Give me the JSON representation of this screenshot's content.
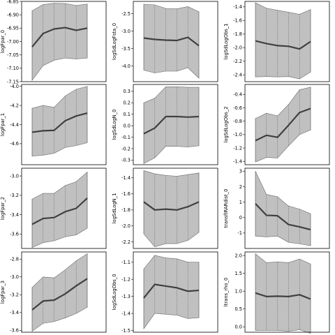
{
  "colors": {
    "band": "#c0c0c0",
    "mean": "#404040",
    "frame": "#000000"
  },
  "chart_data": [
    {
      "type": "area",
      "ylabel": "logFpar_0",
      "ylim": [
        -7.15,
        -6.85
      ],
      "yticks": [
        -7.15,
        -7.1,
        -7.05,
        -7.0,
        -6.95,
        -6.9,
        -6.85
      ],
      "ytick_labels": [
        "-7.15",
        "-7.10",
        "-7.05",
        "-7.00",
        "-6.95",
        "-6.90",
        "-6.85"
      ],
      "x": [
        0,
        1,
        2,
        3,
        4,
        5
      ],
      "mean": [
        -7.02,
        -6.97,
        -6.953,
        -6.948,
        -6.958,
        -6.95
      ],
      "upper": [
        -6.885,
        -6.862,
        -6.857,
        -6.858,
        -6.865,
        -6.86
      ],
      "lower": [
        -7.145,
        -7.09,
        -7.07,
        -7.062,
        -7.065,
        -7.062
      ]
    },
    {
      "type": "area",
      "ylabel": "logSdLogFsta_0",
      "ylim": [
        -4.45,
        -2.15
      ],
      "yticks": [
        -4.0,
        -3.5,
        -3.0,
        -2.5
      ],
      "ytick_labels": [
        "-4.0",
        "-3.5",
        "-3.0",
        "-2.5"
      ],
      "x": [
        0,
        1,
        2,
        3,
        4,
        5
      ],
      "mean": [
        -3.2,
        -3.24,
        -3.26,
        -3.27,
        -3.18,
        -3.42
      ],
      "upper": [
        -2.23,
        -2.25,
        -2.35,
        -2.36,
        -2.3,
        -2.45
      ],
      "lower": [
        -4.12,
        -4.2,
        -4.15,
        -4.15,
        -4.05,
        -4.35
      ]
    },
    {
      "type": "area",
      "ylabel": "logSdLogObs_1",
      "ylim": [
        -2.5,
        -1.32
      ],
      "yticks": [
        -2.4,
        -2.2,
        -2.0,
        -1.8,
        -1.6,
        -1.4
      ],
      "ytick_labels": [
        "-2.4",
        "-2.2",
        "-2.0",
        "-1.8",
        "-1.6",
        "-1.4"
      ],
      "x": [
        0,
        1,
        2,
        3,
        4,
        5
      ],
      "mean": [
        -1.9,
        -1.94,
        -1.97,
        -1.98,
        -2.02,
        -1.91
      ],
      "upper": [
        -1.34,
        -1.42,
        -1.45,
        -1.48,
        -1.51,
        -1.44
      ],
      "lower": [
        -2.43,
        -2.425,
        -2.43,
        -2.425,
        -2.46,
        -2.36
      ]
    },
    {
      "type": "area",
      "ylabel": "logFpar_1",
      "ylim": [
        -4.82,
        -3.98
      ],
      "yticks": [
        -4.6,
        -4.4,
        -4.2,
        -4.0
      ],
      "ytick_labels": [
        "-4.6",
        "-4.4",
        "-4.2",
        "-4.0"
      ],
      "x": [
        0,
        1,
        2,
        3,
        4,
        5
      ],
      "mean": [
        -4.48,
        -4.465,
        -4.46,
        -4.36,
        -4.31,
        -4.28
      ],
      "upper": [
        -4.23,
        -4.2,
        -4.22,
        -4.1,
        -4.03,
        -4.0
      ],
      "lower": [
        -4.73,
        -4.72,
        -4.7,
        -4.64,
        -4.62,
        -4.59
      ]
    },
    {
      "type": "area",
      "ylabel": "logSdLogN_0",
      "ylim": [
        -0.34,
        0.36
      ],
      "yticks": [
        -0.3,
        -0.2,
        -0.1,
        0.0,
        0.1,
        0.2,
        0.3
      ],
      "ytick_labels": [
        "-0.3",
        "-0.2",
        "-0.1",
        "0.0",
        "0.1",
        "0.2",
        "0.3"
      ],
      "x": [
        0,
        1,
        2,
        3,
        4,
        5
      ],
      "mean": [
        -0.07,
        -0.02,
        0.08,
        0.08,
        0.075,
        0.08
      ],
      "upper": [
        0.2,
        0.24,
        0.34,
        0.34,
        0.335,
        0.335
      ],
      "lower": [
        -0.33,
        -0.28,
        -0.18,
        -0.18,
        -0.185,
        -0.175
      ]
    },
    {
      "type": "area",
      "ylabel": "logSdLogObs_2",
      "ylim": [
        -1.45,
        -0.25
      ],
      "yticks": [
        -1.4,
        -1.2,
        -1.0,
        -0.8,
        -0.6,
        -0.4
      ],
      "ytick_labels": [
        "-1.4",
        "-1.2",
        "-1.0",
        "-0.8",
        "-0.6",
        "-0.4"
      ],
      "x": [
        0,
        1,
        2,
        3,
        4,
        5
      ],
      "mean": [
        -1.09,
        -1.01,
        -1.04,
        -0.86,
        -0.67,
        -0.61
      ],
      "upper": [
        -0.76,
        -0.68,
        -0.72,
        -0.55,
        -0.33,
        -0.29
      ],
      "lower": [
        -1.41,
        -1.34,
        -1.35,
        -1.17,
        -1.0,
        -0.93
      ]
    },
    {
      "type": "area",
      "ylabel": "logFpar_2",
      "ylim": [
        -3.75,
        -2.92
      ],
      "yticks": [
        -3.6,
        -3.4,
        -3.2,
        -3.0
      ],
      "ytick_labels": [
        "-3.6",
        "-3.4",
        "-3.2",
        "-3.0"
      ],
      "x": [
        0,
        1,
        2,
        3,
        4,
        5
      ],
      "mean": [
        -3.5,
        -3.44,
        -3.43,
        -3.37,
        -3.335,
        -3.23
      ],
      "upper": [
        -3.24,
        -3.18,
        -3.18,
        -3.1,
        -3.06,
        -2.96
      ],
      "lower": [
        -3.74,
        -3.69,
        -3.67,
        -3.63,
        -3.61,
        -3.54
      ]
    },
    {
      "type": "area",
      "ylabel": "logSdLogN_1",
      "ylim": [
        -2.28,
        -1.28
      ],
      "yticks": [
        -2.2,
        -2.0,
        -1.8,
        -1.6,
        -1.4
      ],
      "ytick_labels": [
        "-2.2",
        "-2.0",
        "-1.8",
        "-1.6",
        "-1.4"
      ],
      "x": [
        0,
        1,
        2,
        3,
        4,
        5
      ],
      "mean": [
        -1.7,
        -1.8,
        -1.79,
        -1.8,
        -1.76,
        -1.7
      ],
      "upper": [
        -1.31,
        -1.35,
        -1.37,
        -1.38,
        -1.36,
        -1.34
      ],
      "lower": [
        -2.1,
        -2.26,
        -2.22,
        -2.22,
        -2.18,
        -2.08
      ]
    },
    {
      "type": "area",
      "ylabel": "transfIRARdist_0",
      "ylim": [
        -2.0,
        3.2
      ],
      "yticks": [
        -1,
        0,
        1,
        2,
        3
      ],
      "ytick_labels": [
        "-1",
        "0",
        "1",
        "2",
        "3"
      ],
      "x": [
        0,
        1,
        2,
        3,
        4,
        5
      ],
      "mean": [
        0.9,
        0.15,
        0.12,
        -0.45,
        -0.6,
        -0.78
      ],
      "upper": [
        3.0,
        1.5,
        1.35,
        0.75,
        0.55,
        0.25
      ],
      "lower": [
        -1.2,
        -1.25,
        -1.2,
        -1.6,
        -1.7,
        -1.82
      ]
    },
    {
      "type": "area",
      "ylabel": "logFpar_3",
      "ylim": [
        -3.62,
        -2.72
      ],
      "yticks": [
        -3.6,
        -3.4,
        -3.2,
        -3.0,
        -2.8
      ],
      "ytick_labels": [
        "-3.6",
        "-3.4",
        "-3.2",
        "-3.0",
        "-2.8"
      ],
      "x": [
        0,
        1,
        2,
        3,
        4,
        5
      ],
      "mean": [
        -3.37,
        -3.27,
        -3.26,
        -3.19,
        -3.1,
        -3.02
      ],
      "upper": [
        -3.12,
        -3.0,
        -3.01,
        -2.92,
        -2.82,
        -2.74
      ],
      "lower": [
        -3.61,
        -3.52,
        -3.5,
        -3.46,
        -3.41,
        -3.34
      ]
    },
    {
      "type": "area",
      "ylabel": "logSdLogObs_0",
      "ylim": [
        -1.51,
        -1.04
      ],
      "yticks": [
        -1.5,
        -1.4,
        -1.3,
        -1.2,
        -1.1
      ],
      "ytick_labels": [
        "-1.5",
        "-1.4",
        "-1.3",
        "-1.2",
        "-1.1"
      ],
      "x": [
        0,
        1,
        2,
        3,
        4,
        5
      ],
      "mean": [
        -1.31,
        -1.23,
        -1.24,
        -1.25,
        -1.27,
        -1.265
      ],
      "upper": [
        -1.14,
        -1.06,
        -1.075,
        -1.08,
        -1.1,
        -1.1
      ],
      "lower": [
        -1.49,
        -1.4,
        -1.405,
        -1.41,
        -1.43,
        -1.425
      ]
    },
    {
      "type": "area",
      "ylabel": "ltrans_rho_0",
      "ylim": [
        -0.15,
        2.1
      ],
      "yticks": [
        0.0,
        0.5,
        1.0,
        1.5,
        2.0
      ],
      "ytick_labels": [
        "0.0",
        "0.5",
        "1.0",
        "1.5",
        "2.0"
      ],
      "x": [
        0,
        1,
        2,
        3,
        4,
        5
      ],
      "mean": [
        0.95,
        0.85,
        0.86,
        0.85,
        0.9,
        0.78
      ],
      "upper": [
        2.05,
        1.8,
        1.82,
        1.8,
        1.9,
        1.76
      ],
      "lower": [
        -0.1,
        -0.1,
        -0.1,
        -0.12,
        -0.08,
        -0.18
      ]
    }
  ]
}
